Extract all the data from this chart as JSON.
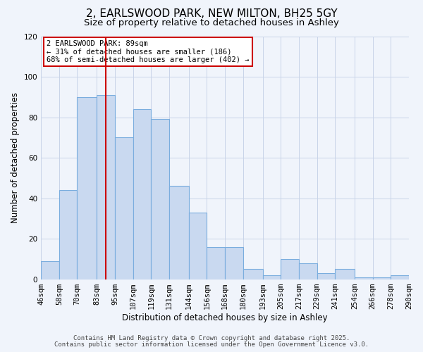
{
  "title": "2, EARLSWOOD PARK, NEW MILTON, BH25 5GY",
  "subtitle": "Size of property relative to detached houses in Ashley",
  "xlabel": "Distribution of detached houses by size in Ashley",
  "ylabel": "Number of detached properties",
  "bar_left_edges": [
    46,
    58,
    70,
    83,
    95,
    107,
    119,
    131,
    144,
    156,
    168,
    180,
    193,
    205,
    217,
    229,
    241,
    254,
    266,
    278
  ],
  "bar_widths": [
    12,
    12,
    13,
    12,
    12,
    12,
    12,
    13,
    12,
    12,
    12,
    13,
    12,
    12,
    12,
    12,
    13,
    12,
    12,
    12
  ],
  "bar_heights": [
    9,
    44,
    90,
    91,
    70,
    84,
    79,
    46,
    33,
    16,
    16,
    5,
    2,
    10,
    8,
    3,
    5,
    1,
    1,
    2
  ],
  "bar_color": "#c9d9f0",
  "bar_edge_color": "#7aadde",
  "tick_labels": [
    "46sqm",
    "58sqm",
    "70sqm",
    "83sqm",
    "95sqm",
    "107sqm",
    "119sqm",
    "131sqm",
    "144sqm",
    "156sqm",
    "168sqm",
    "180sqm",
    "193sqm",
    "205sqm",
    "217sqm",
    "229sqm",
    "241sqm",
    "254sqm",
    "266sqm",
    "278sqm",
    "290sqm"
  ],
  "ylim": [
    0,
    120
  ],
  "yticks": [
    0,
    20,
    40,
    60,
    80,
    100,
    120
  ],
  "vline_x": 89,
  "vline_color": "#cc0000",
  "annotation_title": "2 EARLSWOOD PARK: 89sqm",
  "annotation_line2": "← 31% of detached houses are smaller (186)",
  "annotation_line3": "68% of semi-detached houses are larger (402) →",
  "annotation_box_color": "#ffffff",
  "annotation_box_edge": "#cc0000",
  "footer1": "Contains HM Land Registry data © Crown copyright and database right 2025.",
  "footer2": "Contains public sector information licensed under the Open Government Licence v3.0.",
  "bg_color": "#f0f4fb",
  "grid_color": "#c8d4e8",
  "title_fontsize": 11,
  "subtitle_fontsize": 9.5,
  "axis_label_fontsize": 8.5,
  "tick_fontsize": 7.5,
  "annotation_fontsize": 7.5,
  "footer_fontsize": 6.5
}
